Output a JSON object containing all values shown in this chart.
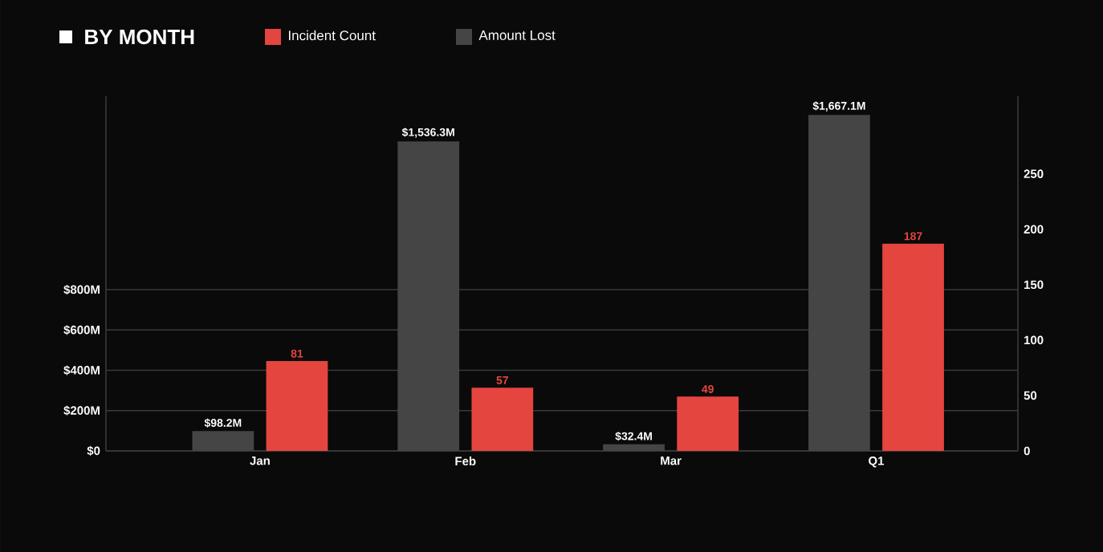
{
  "chart_data": {
    "type": "bar",
    "title": "BY MONTH",
    "categories": [
      "Jan",
      "Feb",
      "Mar",
      "Q1"
    ],
    "series": [
      {
        "name": "Amount Lost",
        "color": "#454545",
        "values": [
          98.2,
          1536.3,
          32.4,
          1667.1
        ],
        "value_labels": [
          "$98.2M",
          "$1,536.3M",
          "$32.4M",
          "$1,667.1M"
        ]
      },
      {
        "name": "Incident Count",
        "color": "#e5453f",
        "axis": "y2",
        "values": [
          81,
          57,
          49,
          187
        ],
        "value_labels": [
          "81",
          "57",
          "49",
          "187"
        ]
      }
    ],
    "ylim": [
      0,
      1760
    ],
    "yticks": [
      {
        "value": 0,
        "label": "$0"
      },
      {
        "value": 200,
        "label": "$200M"
      },
      {
        "value": 400,
        "label": "$400M"
      },
      {
        "value": 600,
        "label": "$600M"
      },
      {
        "value": 800,
        "label": "$800M"
      }
    ],
    "y2lim": [
      0,
      320
    ],
    "y2ticks": [
      0,
      50,
      100,
      150,
      200,
      250
    ],
    "grid": "y",
    "legend": "top"
  }
}
